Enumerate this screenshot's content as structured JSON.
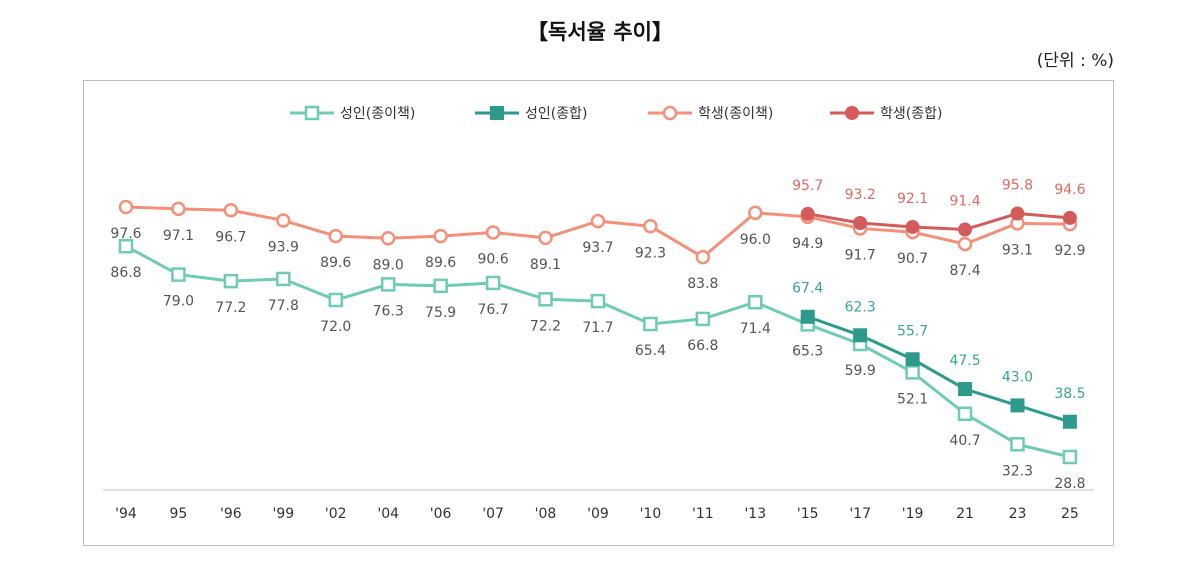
{
  "chart_data": {
    "type": "line",
    "title": "【독서율 추이】",
    "unit_label": "(단위 : %)",
    "categories": [
      "'94",
      "95",
      "'96",
      "'99",
      "'02",
      "'04",
      "'06",
      "'07",
      "'08",
      "'09",
      "'10",
      "'11",
      "'13",
      "'15",
      "'17",
      "'19",
      "21",
      "23",
      "25"
    ],
    "legend_position": "top",
    "grid": false,
    "series": [
      {
        "name": "성인(종이책)",
        "color": "#6fcbb4",
        "marker": "open-square",
        "values": [
          86.8,
          79.0,
          77.2,
          77.8,
          72.0,
          76.3,
          75.9,
          76.7,
          72.2,
          71.7,
          65.4,
          66.8,
          71.4,
          65.3,
          59.9,
          52.1,
          40.7,
          32.3,
          28.8
        ]
      },
      {
        "name": "성인(종합)",
        "color": "#2e9a8c",
        "label_color": "#3aa595",
        "marker": "filled-square",
        "values": [
          null,
          null,
          null,
          null,
          null,
          null,
          null,
          null,
          null,
          null,
          null,
          null,
          null,
          67.4,
          62.3,
          55.7,
          47.5,
          43.0,
          38.5
        ]
      },
      {
        "name": "학생(종이책)",
        "color": "#f4907a",
        "marker": "open-circle",
        "values": [
          97.6,
          97.1,
          96.7,
          93.9,
          89.6,
          89.0,
          89.6,
          90.6,
          89.1,
          93.7,
          92.3,
          83.8,
          96.0,
          94.9,
          91.7,
          90.7,
          87.4,
          93.1,
          92.9
        ]
      },
      {
        "name": "학생(종합)",
        "color": "#d45b5b",
        "label_color": "#e06a60",
        "marker": "filled-circle",
        "values": [
          null,
          null,
          null,
          null,
          null,
          null,
          null,
          null,
          null,
          null,
          null,
          null,
          null,
          95.7,
          93.2,
          92.1,
          91.4,
          95.8,
          94.6
        ]
      }
    ]
  }
}
